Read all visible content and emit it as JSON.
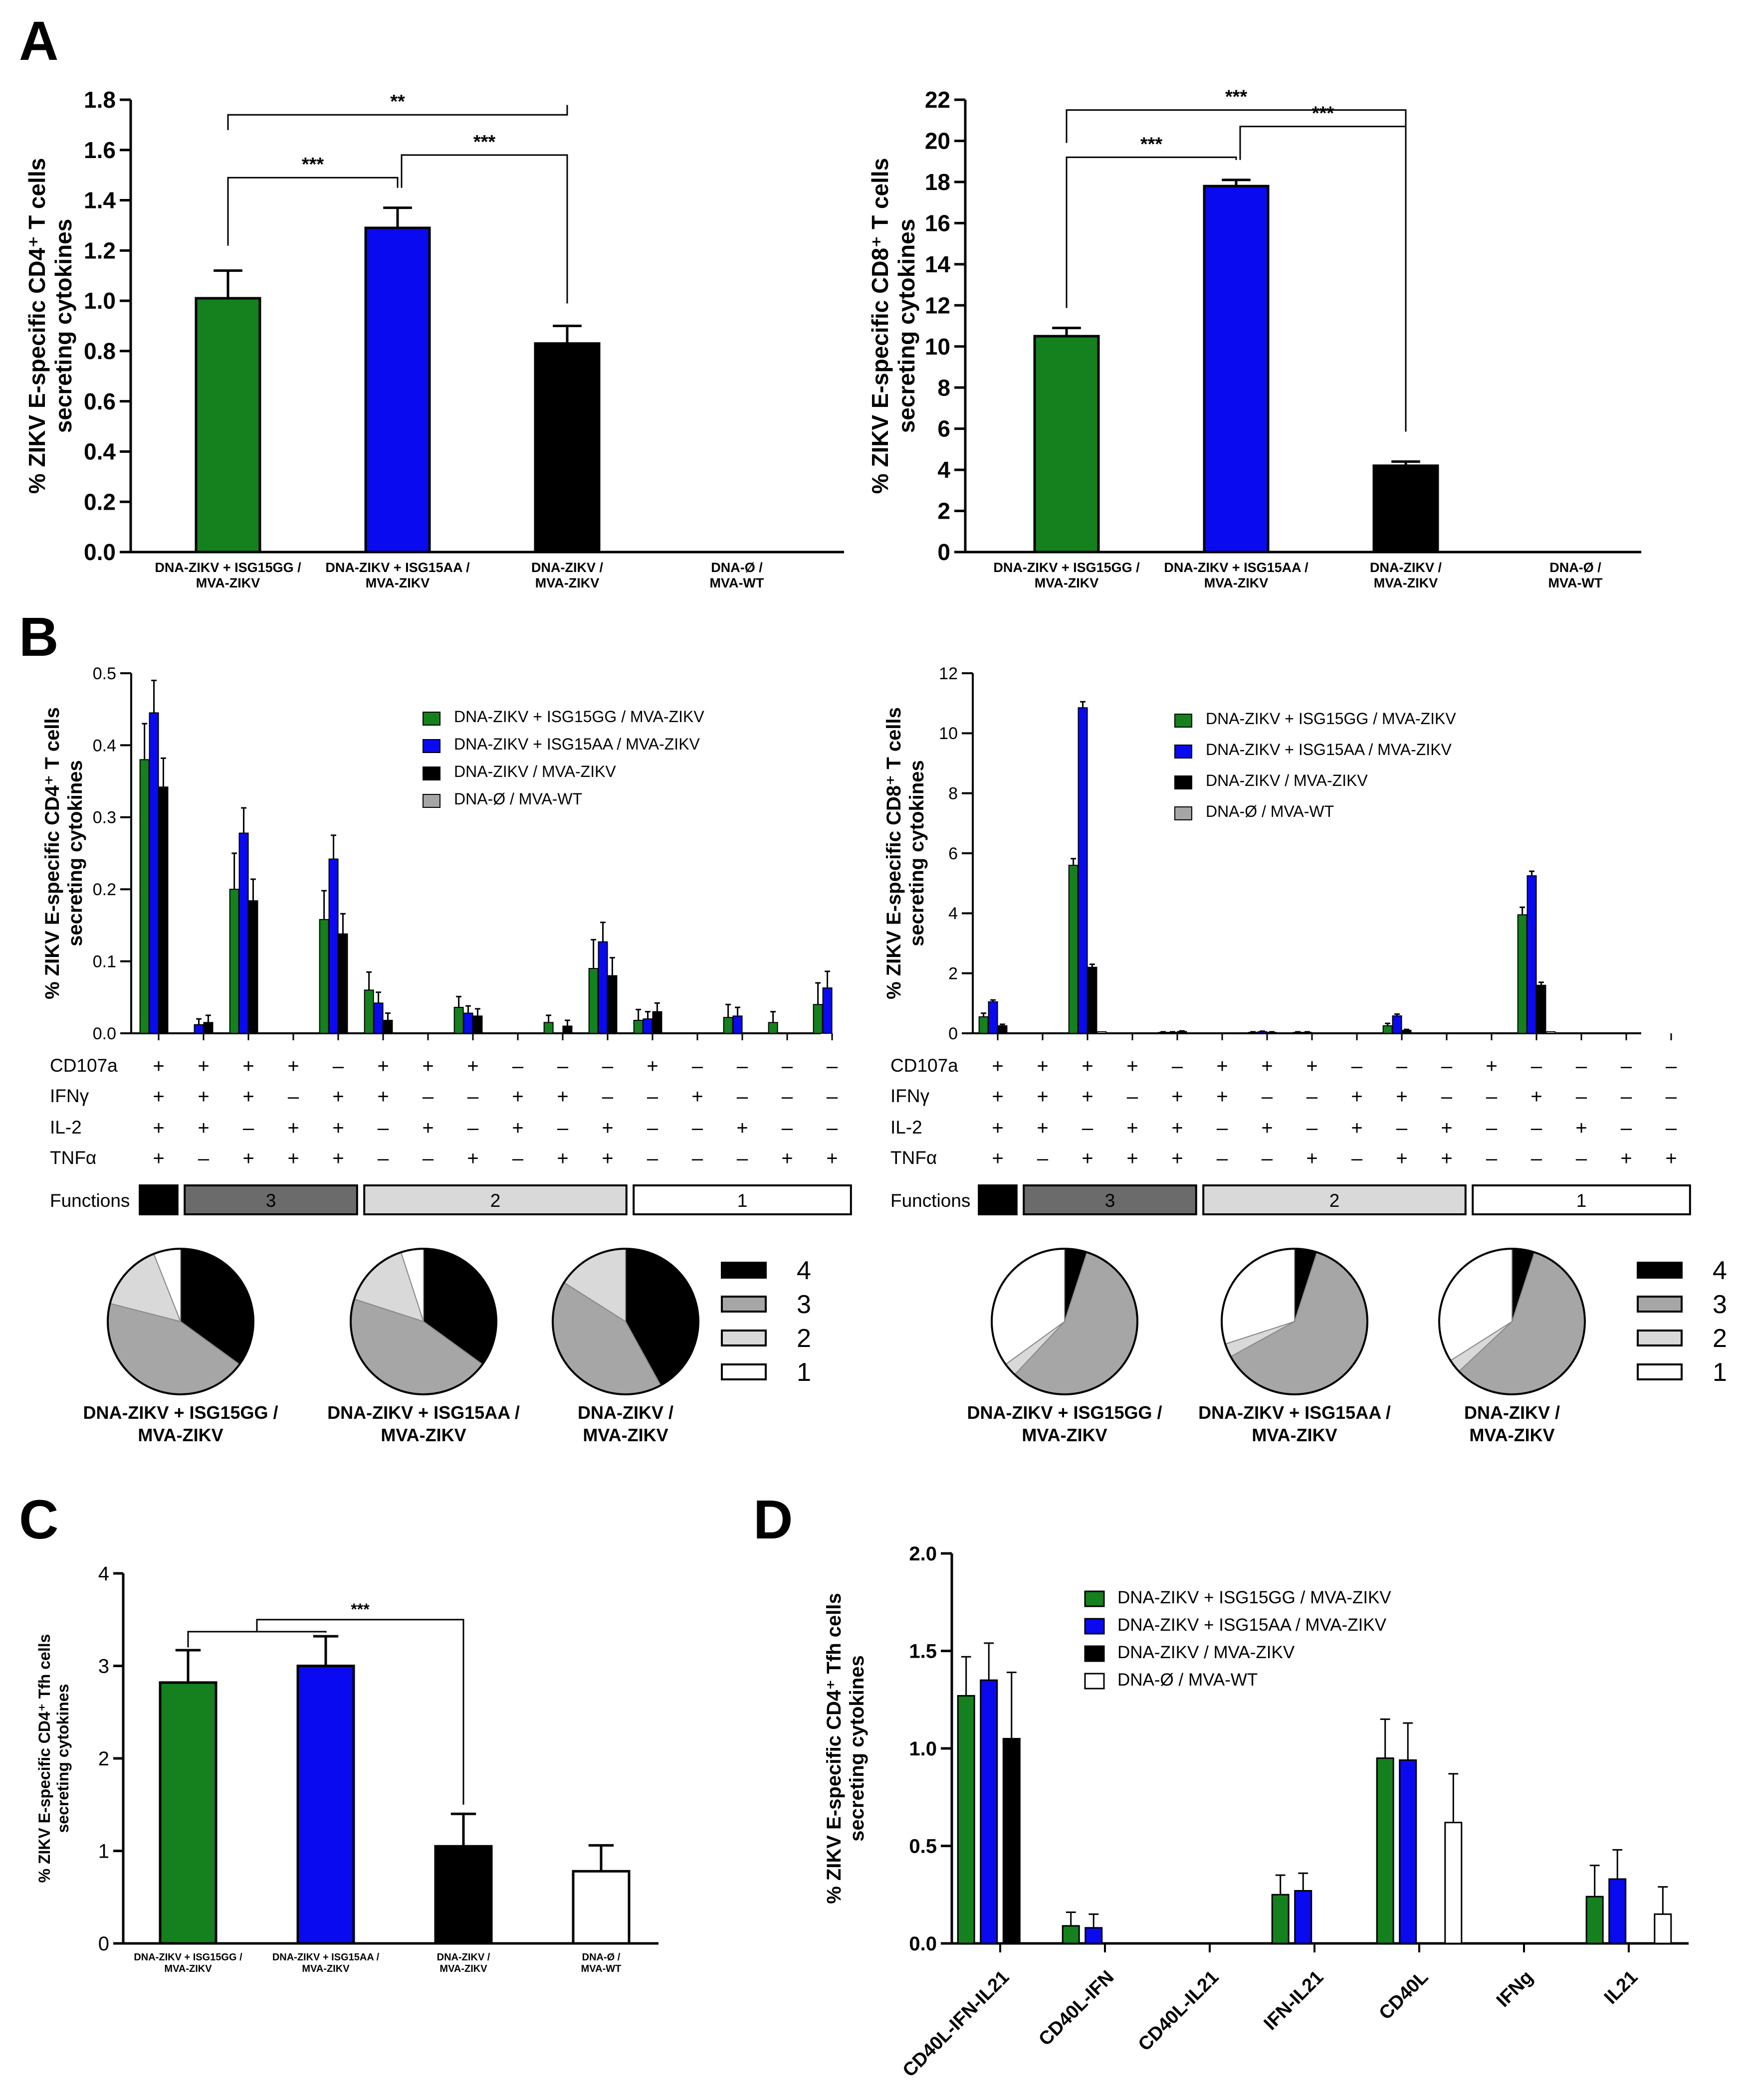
{
  "panel_labels": {
    "A": "A",
    "B": "B",
    "C": "C",
    "D": "D"
  },
  "groups": {
    "gg": "DNA-ZIKV + ISG15GG / MVA-ZIKV",
    "aa": "DNA-ZIKV + ISG15AA / MVA-ZIKV",
    "zk": "DNA-ZIKV / MVA-ZIKV",
    "wt": "DNA-Ø / MVA-WT",
    "gg_l1": "DNA-ZIKV + ISG15GG /",
    "aa_l1": "DNA-ZIKV + ISG15AA /",
    "zk_l1": "DNA-ZIKV /",
    "wt_l1": "DNA-Ø /",
    "l2": "MVA-ZIKV",
    "wt_l2": "MVA-WT"
  },
  "colors": {
    "gg": "#14801e",
    "aa": "#0a0af0",
    "zk": "#000000",
    "wt": "#ffffff",
    "gray": "#a6a6a6",
    "light": "#d9d9d9",
    "dark": "#6b6b6b"
  },
  "chart_data": [
    {
      "id": "A_CD4",
      "type": "bar",
      "ylabel": [
        "% ZIKV E-specific CD4⁺ T cells",
        "secreting cytokines"
      ],
      "ylim": [
        0,
        1.8
      ],
      "yticks": [
        "0.0",
        "0.2",
        "0.4",
        "0.6",
        "0.8",
        "1.0",
        "1.2",
        "1.4",
        "1.6",
        "1.8"
      ],
      "categories": [
        "DNA-ZIKV + ISG15GG / MVA-ZIKV",
        "DNA-ZIKV + ISG15AA / MVA-ZIKV",
        "DNA-ZIKV / MVA-ZIKV",
        "DNA-Ø / MVA-WT"
      ],
      "values": [
        1.01,
        1.29,
        0.83,
        0
      ],
      "errors": [
        0.11,
        0.08,
        0.07,
        0
      ],
      "significance": [
        {
          "between": [
            "DNA-ZIKV + ISG15GG / MVA-ZIKV",
            "DNA-ZIKV + ISG15AA / MVA-ZIKV"
          ],
          "label": "***"
        },
        {
          "between": [
            "DNA-ZIKV + ISG15AA / MVA-ZIKV",
            "DNA-ZIKV / MVA-ZIKV"
          ],
          "label": "***"
        },
        {
          "between": [
            "DNA-ZIKV + ISG15GG / MVA-ZIKV",
            "DNA-ZIKV / MVA-ZIKV"
          ],
          "label": "**"
        }
      ]
    },
    {
      "id": "A_CD8",
      "type": "bar",
      "ylabel": [
        "% ZIKV E-specific CD8⁺ T cells",
        "secreting cytokines"
      ],
      "ylim": [
        0,
        22
      ],
      "yticks": [
        "0",
        "2",
        "4",
        "6",
        "8",
        "10",
        "12",
        "14",
        "16",
        "18",
        "20",
        "22"
      ],
      "categories": [
        "DNA-ZIKV + ISG15GG / MVA-ZIKV",
        "DNA-ZIKV + ISG15AA / MVA-ZIKV",
        "DNA-ZIKV / MVA-ZIKV",
        "DNA-Ø / MVA-WT"
      ],
      "values": [
        10.5,
        17.8,
        4.2,
        0
      ],
      "errors": [
        0.4,
        0.3,
        0.2,
        0
      ],
      "significance": [
        {
          "between": [
            "DNA-ZIKV + ISG15GG / MVA-ZIKV",
            "DNA-ZIKV + ISG15AA / MVA-ZIKV"
          ],
          "label": "***"
        },
        {
          "between": [
            "DNA-ZIKV + ISG15AA / MVA-ZIKV",
            "DNA-ZIKV / MVA-ZIKV"
          ],
          "label": "***"
        },
        {
          "between": [
            "DNA-ZIKV + ISG15GG / MVA-ZIKV",
            "DNA-ZIKV / MVA-ZIKV"
          ],
          "label": "***"
        }
      ]
    },
    {
      "id": "B_CD4",
      "type": "bar",
      "ylabel": [
        "% ZIKV E-specific CD4⁺ T cells",
        "secreting cytokines"
      ],
      "ylim": [
        0,
        0.5
      ],
      "yticks": [
        "0.0",
        "0.1",
        "0.2",
        "0.3",
        "0.4",
        "0.5"
      ],
      "legend": [
        "DNA-ZIKV + ISG15GG / MVA-ZIKV",
        "DNA-ZIKV + ISG15AA / MVA-ZIKV",
        "DNA-ZIKV / MVA-ZIKV",
        "DNA-Ø / MVA-WT"
      ],
      "series": [
        {
          "name": "DNA-ZIKV + ISG15GG / MVA-ZIKV",
          "values": [
            0.38,
            0,
            0.2,
            0,
            0.158,
            0.06,
            0,
            0.036,
            0,
            0.015,
            0.09,
            0.018,
            0,
            0.022,
            0.015,
            0.04
          ],
          "errors": [
            0.05,
            0,
            0.05,
            0,
            0.04,
            0.025,
            0,
            0.015,
            0,
            0.01,
            0.04,
            0.015,
            0,
            0.018,
            0.015,
            0.03
          ]
        },
        {
          "name": "DNA-ZIKV + ISG15AA / MVA-ZIKV",
          "values": [
            0.445,
            0.012,
            0.278,
            0,
            0.242,
            0.042,
            0,
            0.028,
            0,
            0,
            0.127,
            0.02,
            0,
            0.024,
            0,
            0.063
          ],
          "errors": [
            0.045,
            0.008,
            0.035,
            0,
            0.033,
            0.015,
            0,
            0.01,
            0,
            0,
            0.027,
            0.01,
            0,
            0.012,
            0,
            0.023
          ]
        },
        {
          "name": "DNA-ZIKV / MVA-ZIKV",
          "values": [
            0.342,
            0.015,
            0.184,
            0,
            0.138,
            0.018,
            0,
            0.024,
            0,
            0.01,
            0.08,
            0.03,
            0,
            0,
            0,
            0
          ],
          "errors": [
            0.04,
            0.01,
            0.03,
            0,
            0.028,
            0.01,
            0,
            0.01,
            0,
            0.008,
            0.025,
            0.012,
            0,
            0,
            0,
            0
          ]
        },
        {
          "name": "DNA-Ø / MVA-WT",
          "values": [
            0,
            0,
            0,
            0,
            0,
            0,
            0,
            0,
            0,
            0,
            0,
            0,
            0,
            0,
            0,
            0
          ],
          "errors": [
            0,
            0,
            0,
            0,
            0,
            0,
            0,
            0,
            0,
            0,
            0,
            0,
            0,
            0,
            0,
            0
          ]
        }
      ]
    },
    {
      "id": "B_CD8",
      "type": "bar",
      "ylabel": [
        "% ZIKV E-specific CD8⁺ T cells",
        "secreting cytokines"
      ],
      "ylim": [
        0,
        12
      ],
      "yticks": [
        "0",
        "2",
        "4",
        "6",
        "8",
        "10",
        "12"
      ],
      "legend": [
        "DNA-ZIKV + ISG15GG / MVA-ZIKV",
        "DNA-ZIKV + ISG15AA / MVA-ZIKV",
        "DNA-ZIKV / MVA-ZIKV",
        "DNA-Ø / MVA-WT"
      ],
      "series": [
        {
          "name": "DNA-ZIKV + ISG15GG / MVA-ZIKV",
          "values": [
            0.55,
            0,
            5.6,
            0,
            0.03,
            0,
            0.03,
            0.03,
            0,
            0.25,
            0,
            0,
            3.95,
            0,
            0,
            0
          ],
          "errors": [
            0.12,
            0,
            0.22,
            0,
            0.02,
            0,
            0.02,
            0.02,
            0,
            0.08,
            0,
            0,
            0.25,
            0,
            0,
            0
          ]
        },
        {
          "name": "DNA-ZIKV + ISG15AA / MVA-ZIKV",
          "values": [
            1.05,
            0,
            10.85,
            0,
            0.03,
            0,
            0.05,
            0.03,
            0,
            0.58,
            0,
            0,
            5.25,
            0,
            0,
            0
          ],
          "errors": [
            0.06,
            0,
            0.2,
            0,
            0.02,
            0,
            0.02,
            0.02,
            0,
            0.06,
            0,
            0,
            0.15,
            0,
            0,
            0
          ]
        },
        {
          "name": "DNA-ZIKV / MVA-ZIKV",
          "values": [
            0.25,
            0,
            2.2,
            0,
            0.06,
            0,
            0.03,
            0,
            0,
            0.1,
            0,
            0,
            1.6,
            0,
            0,
            0
          ],
          "errors": [
            0.05,
            0,
            0.1,
            0,
            0.02,
            0,
            0.02,
            0,
            0,
            0.03,
            0,
            0,
            0.1,
            0,
            0,
            0
          ]
        },
        {
          "name": "DNA-Ø / MVA-WT",
          "values": [
            0,
            0,
            0.05,
            0,
            0,
            0,
            0,
            0,
            0,
            0,
            0,
            0,
            0.05,
            0,
            0,
            0
          ],
          "errors": [
            0,
            0,
            0,
            0,
            0,
            0,
            0,
            0,
            0,
            0,
            0,
            0,
            0,
            0,
            0,
            0
          ]
        }
      ]
    },
    {
      "id": "C",
      "type": "bar",
      "ylabel": [
        "% ZIKV E-specific CD4⁺ Tfh cells",
        "secreting cytokines"
      ],
      "ylim": [
        0,
        4
      ],
      "yticks": [
        "0",
        "1",
        "2",
        "3",
        "4"
      ],
      "categories": [
        "DNA-ZIKV + ISG15GG / MVA-ZIKV",
        "DNA-ZIKV + ISG15AA / MVA-ZIKV",
        "DNA-ZIKV / MVA-ZIKV",
        "DNA-Ø / MVA-WT"
      ],
      "values": [
        2.82,
        3.0,
        1.05,
        0.78
      ],
      "errors": [
        0.35,
        0.32,
        0.35,
        0.28
      ],
      "significance": [
        {
          "between": [
            "DNA-ZIKV + ISG15GG / MVA-ZIKV + DNA-ZIKV + ISG15AA / MVA-ZIKV",
            "DNA-ZIKV / MVA-ZIKV"
          ],
          "label": "***"
        }
      ]
    },
    {
      "id": "D",
      "type": "bar",
      "ylabel": [
        "% ZIKV E-specific CD4⁺ Tfh cells",
        "secreting cytokines"
      ],
      "ylim": [
        0,
        2.0
      ],
      "yticks": [
        "0.0",
        "0.5",
        "1.0",
        "1.5",
        "2.0"
      ],
      "categories": [
        "CD40L-IFN-IL21",
        "CD40L-IFN",
        "CD40L-IL21",
        "IFN-IL21",
        "CD40L",
        "IFNg",
        "IL21"
      ],
      "legend": [
        "DNA-ZIKV + ISG15GG / MVA-ZIKV",
        "DNA-ZIKV + ISG15AA / MVA-ZIKV",
        "DNA-ZIKV / MVA-ZIKV",
        "DNA-Ø / MVA-WT"
      ],
      "series": [
        {
          "name": "DNA-ZIKV + ISG15GG / MVA-ZIKV",
          "values": [
            1.27,
            0.09,
            0,
            0.25,
            0.95,
            0,
            0.24
          ],
          "errors": [
            0.2,
            0.07,
            0,
            0.1,
            0.2,
            0,
            0.16
          ]
        },
        {
          "name": "DNA-ZIKV + ISG15AA / MVA-ZIKV",
          "values": [
            1.35,
            0.08,
            0,
            0.27,
            0.94,
            0,
            0.33
          ],
          "errors": [
            0.19,
            0.07,
            0,
            0.09,
            0.19,
            0,
            0.15
          ]
        },
        {
          "name": "DNA-ZIKV / MVA-ZIKV",
          "values": [
            1.05,
            0,
            0,
            0,
            0,
            0,
            0
          ],
          "errors": [
            0.34,
            0,
            0,
            0,
            0,
            0,
            0
          ]
        },
        {
          "name": "DNA-Ø / MVA-WT",
          "values": [
            0,
            0,
            0,
            0,
            0.62,
            0,
            0.15
          ],
          "errors": [
            0,
            0,
            0,
            0,
            0.25,
            0,
            0.14
          ]
        }
      ]
    }
  ],
  "boolean_table": {
    "row_labels": [
      "CD107a",
      "IFNγ",
      "IL-2",
      "TNFα"
    ],
    "rows": [
      [
        "+",
        "+",
        "+",
        "+",
        "-",
        "+",
        "+",
        "+",
        "-",
        "-",
        "-",
        "+",
        "-",
        "-",
        "-",
        "-"
      ],
      [
        "+",
        "+",
        "+",
        "-",
        "+",
        "+",
        "-",
        "-",
        "+",
        "+",
        "-",
        "-",
        "+",
        "-",
        "-",
        "-"
      ],
      [
        "+",
        "+",
        "-",
        "+",
        "+",
        "-",
        "+",
        "-",
        "+",
        "-",
        "+",
        "-",
        "-",
        "+",
        "-",
        "-"
      ],
      [
        "+",
        "-",
        "+",
        "+",
        "+",
        "-",
        "-",
        "+",
        "-",
        "+",
        "+",
        "-",
        "-",
        "-",
        "+",
        "+"
      ]
    ],
    "functions_label": "Functions",
    "functions": [
      {
        "label": "4",
        "span": 1
      },
      {
        "label": "3",
        "span": 4
      },
      {
        "label": "2",
        "span": 6
      },
      {
        "label": "1",
        "span": 5
      }
    ]
  },
  "pies": {
    "legend": [
      "4",
      "3",
      "2",
      "1"
    ],
    "cd4": [
      {
        "label1": "DNA-ZIKV + ISG15GG /",
        "label2": "MVA-ZIKV",
        "fractions": [
          0.35,
          0.44,
          0.15,
          0.06
        ]
      },
      {
        "label1": "DNA-ZIKV + ISG15AA /",
        "label2": "MVA-ZIKV",
        "fractions": [
          0.35,
          0.45,
          0.15,
          0.05
        ]
      },
      {
        "label1": "DNA-ZIKV /",
        "label2": "MVA-ZIKV",
        "fractions": [
          0.42,
          0.42,
          0.16,
          0.0
        ]
      }
    ],
    "cd8": [
      {
        "label1": "DNA-ZIKV + ISG15GG /",
        "label2": "MVA-ZIKV",
        "fractions": [
          0.05,
          0.57,
          0.03,
          0.35
        ]
      },
      {
        "label1": "DNA-ZIKV + ISG15AA /",
        "label2": "MVA-ZIKV",
        "fractions": [
          0.05,
          0.62,
          0.03,
          0.3
        ]
      },
      {
        "label1": "DNA-ZIKV /",
        "label2": "MVA-ZIKV",
        "fractions": [
          0.05,
          0.58,
          0.03,
          0.34
        ]
      }
    ]
  }
}
